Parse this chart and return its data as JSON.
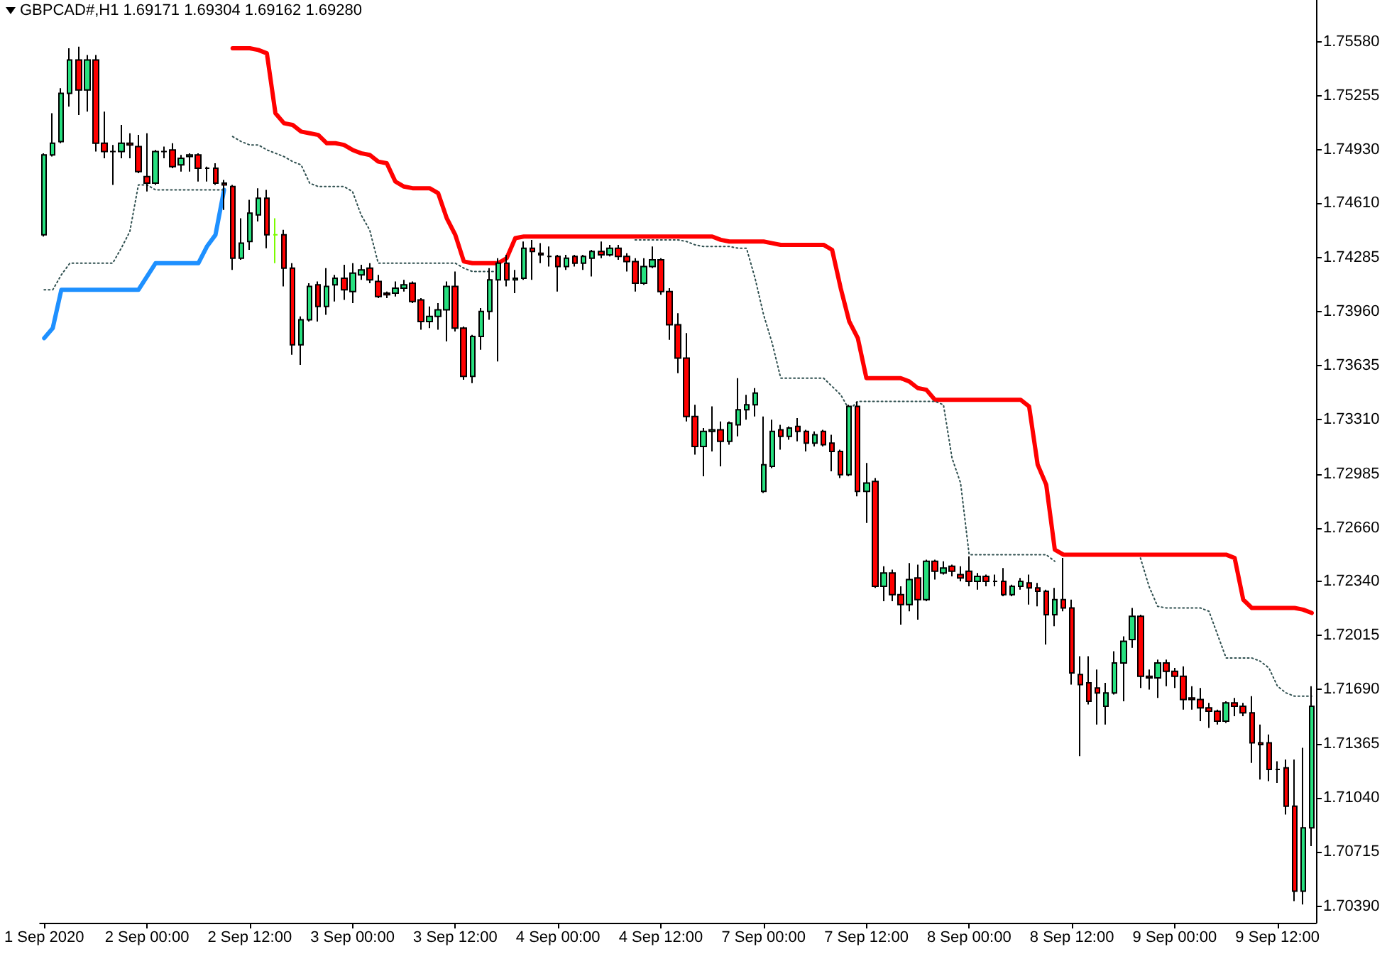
{
  "chart_data": {
    "type": "candlestick",
    "title": "GBPCAD#,H1 1.69171 1.69304 1.69162 1.69280",
    "categories": [
      "1 Sep 2020",
      null,
      null,
      null,
      null,
      null,
      null,
      null,
      null,
      null,
      null,
      null,
      "2 Sep 00:00",
      null,
      null,
      null,
      null,
      null,
      null,
      null,
      null,
      null,
      null,
      null,
      "2 Sep 12:00",
      null,
      null,
      null,
      null,
      null,
      null,
      null,
      null,
      null,
      null,
      null,
      "3 Sep 00:00",
      null,
      null,
      null,
      null,
      null,
      null,
      null,
      null,
      null,
      null,
      null,
      "3 Sep 12:00",
      null,
      null,
      null,
      null,
      null,
      null,
      null,
      null,
      null,
      null,
      null,
      "4 Sep 00:00",
      null,
      null,
      null,
      null,
      null,
      null,
      null,
      null,
      null,
      null,
      null,
      "4 Sep 12:00",
      null,
      null,
      null,
      null,
      null,
      null,
      null,
      null,
      null,
      null,
      null,
      "7 Sep 00:00",
      null,
      null,
      null,
      null,
      null,
      null,
      null,
      null,
      null,
      null,
      null,
      "7 Sep 12:00",
      null,
      null,
      null,
      null,
      null,
      null,
      null,
      null,
      null,
      null,
      null,
      "8 Sep 00:00",
      null,
      null,
      null,
      null,
      null,
      null,
      null,
      null,
      null,
      null,
      null,
      "8 Sep 12:00",
      null,
      null,
      null,
      null,
      null,
      null,
      null,
      null,
      null,
      null,
      null,
      "9 Sep 00:00",
      null,
      null,
      null,
      null,
      null,
      null,
      null,
      null,
      null,
      null,
      null,
      "9 Sep 12:00",
      null,
      null,
      null,
      null
    ],
    "ohlc": [
      [
        1.7442,
        1.7491,
        1.7441,
        1.749
      ],
      [
        1.749,
        1.7515,
        1.7489,
        1.7497
      ],
      [
        1.7498,
        1.753,
        1.7497,
        1.7527
      ],
      [
        1.7527,
        1.7554,
        1.7519,
        1.7547
      ],
      [
        1.7547,
        1.7555,
        1.7514,
        1.7529
      ],
      [
        1.7529,
        1.755,
        1.7516,
        1.7547
      ],
      [
        1.7547,
        1.755,
        1.7492,
        1.7497
      ],
      [
        1.7497,
        1.7516,
        1.7488,
        1.7492
      ],
      [
        1.7492,
        1.7496,
        1.7472,
        1.7492
      ],
      [
        1.7492,
        1.7508,
        1.7488,
        1.7497
      ],
      [
        1.7497,
        1.7503,
        1.7488,
        1.7496
      ],
      [
        1.7495,
        1.7502,
        1.7479,
        1.748
      ],
      [
        1.7477,
        1.7503,
        1.7468,
        1.7473
      ],
      [
        1.7473,
        1.7493,
        1.7472,
        1.7492
      ],
      [
        1.7492,
        1.7495,
        1.7488,
        1.7492
      ],
      [
        1.7493,
        1.7497,
        1.7482,
        1.7483
      ],
      [
        1.7484,
        1.749,
        1.748,
        1.7488
      ],
      [
        1.7489,
        1.7491,
        1.748,
        1.749
      ],
      [
        1.749,
        1.7491,
        1.7474,
        1.7482
      ],
      [
        1.7482,
        1.7483,
        1.7474,
        1.7482
      ],
      [
        1.7482,
        1.7485,
        1.7472,
        1.7473
      ],
      [
        1.7473,
        1.7475,
        1.7457,
        1.7472
      ],
      [
        1.7471,
        1.7472,
        1.7421,
        1.7428
      ],
      [
        1.7428,
        1.7452,
        1.7427,
        1.7437
      ],
      [
        1.7438,
        1.7463,
        1.7433,
        1.7455
      ],
      [
        1.7454,
        1.747,
        1.745,
        1.7464
      ],
      [
        1.7464,
        1.7469,
        1.7434,
        1.7442
      ],
      [
        1.7442,
        1.7452,
        1.7425,
        1.7442
      ],
      [
        1.7442,
        1.7445,
        1.7411,
        1.7422
      ],
      [
        1.7422,
        1.7425,
        1.737,
        1.7376
      ],
      [
        1.7376,
        1.7393,
        1.7364,
        1.7391
      ],
      [
        1.7391,
        1.7413,
        1.739,
        1.7411
      ],
      [
        1.7412,
        1.7414,
        1.739,
        1.7399
      ],
      [
        1.7399,
        1.7422,
        1.7394,
        1.7411
      ],
      [
        1.7412,
        1.7418,
        1.7402,
        1.7416
      ],
      [
        1.7416,
        1.7424,
        1.7403,
        1.7409
      ],
      [
        1.7408,
        1.7425,
        1.7401,
        1.7419
      ],
      [
        1.7418,
        1.7424,
        1.7415,
        1.7421
      ],
      [
        1.7422,
        1.7425,
        1.7413,
        1.7415
      ],
      [
        1.7414,
        1.7418,
        1.7404,
        1.7405
      ],
      [
        1.7407,
        1.7408,
        1.7404,
        1.7406
      ],
      [
        1.7407,
        1.7414,
        1.7405,
        1.741
      ],
      [
        1.741,
        1.7415,
        1.7408,
        1.7412
      ],
      [
        1.7413,
        1.7414,
        1.7401,
        1.7402
      ],
      [
        1.7403,
        1.7404,
        1.7385,
        1.739
      ],
      [
        1.739,
        1.7399,
        1.7386,
        1.7393
      ],
      [
        1.7393,
        1.7401,
        1.7385,
        1.7397
      ],
      [
        1.7397,
        1.7414,
        1.7378,
        1.7411
      ],
      [
        1.7411,
        1.742,
        1.7384,
        1.7386
      ],
      [
        1.7386,
        1.7387,
        1.7355,
        1.7357
      ],
      [
        1.7357,
        1.7382,
        1.7353,
        1.7381
      ],
      [
        1.7381,
        1.7398,
        1.7373,
        1.7396
      ],
      [
        1.7396,
        1.7422,
        1.7391,
        1.7415
      ],
      [
        1.7415,
        1.7428,
        1.7366,
        1.7425
      ],
      [
        1.7425,
        1.743,
        1.7411,
        1.7415
      ],
      [
        1.7415,
        1.7421,
        1.7407,
        1.7416
      ],
      [
        1.7416,
        1.7438,
        1.7415,
        1.7434
      ],
      [
        1.7434,
        1.7439,
        1.7415,
        1.7432
      ],
      [
        1.7431,
        1.7437,
        1.7425,
        1.743
      ],
      [
        1.7429,
        1.7435,
        1.7423,
        1.7429
      ],
      [
        1.7429,
        1.743,
        1.7408,
        1.7423
      ],
      [
        1.7423,
        1.743,
        1.7421,
        1.7428
      ],
      [
        1.7429,
        1.743,
        1.7423,
        1.7425
      ],
      [
        1.7425,
        1.743,
        1.7421,
        1.7429
      ],
      [
        1.7428,
        1.7433,
        1.7417,
        1.7432
      ],
      [
        1.7432,
        1.7438,
        1.7428,
        1.743
      ],
      [
        1.743,
        1.7436,
        1.7429,
        1.7434
      ],
      [
        1.7434,
        1.7436,
        1.7427,
        1.7429
      ],
      [
        1.7429,
        1.7431,
        1.742,
        1.7426
      ],
      [
        1.7426,
        1.7428,
        1.7408,
        1.7413
      ],
      [
        1.7413,
        1.7428,
        1.7412,
        1.7423
      ],
      [
        1.7423,
        1.7435,
        1.7422,
        1.7427
      ],
      [
        1.7427,
        1.7428,
        1.7406,
        1.7408
      ],
      [
        1.7408,
        1.741,
        1.7379,
        1.7388
      ],
      [
        1.7388,
        1.7395,
        1.7359,
        1.7368
      ],
      [
        1.7368,
        1.7383,
        1.733,
        1.7333
      ],
      [
        1.7333,
        1.734,
        1.731,
        1.7315
      ],
      [
        1.7315,
        1.7326,
        1.7297,
        1.7324
      ],
      [
        1.7324,
        1.7339,
        1.7312,
        1.7325
      ],
      [
        1.7325,
        1.733,
        1.7303,
        1.7318
      ],
      [
        1.7318,
        1.733,
        1.7316,
        1.7329
      ],
      [
        1.7328,
        1.7356,
        1.7321,
        1.7337
      ],
      [
        1.7337,
        1.7346,
        1.7331,
        1.734
      ],
      [
        1.734,
        1.735,
        1.7333,
        1.7347
      ],
      [
        1.7288,
        1.7333,
        1.7287,
        1.7304
      ],
      [
        1.7303,
        1.7331,
        1.7302,
        1.7324
      ],
      [
        1.7325,
        1.7328,
        1.7313,
        1.7321
      ],
      [
        1.7321,
        1.7327,
        1.7319,
        1.7326
      ],
      [
        1.7327,
        1.7332,
        1.7318,
        1.7324
      ],
      [
        1.7324,
        1.7325,
        1.7312,
        1.7317
      ],
      [
        1.7317,
        1.7324,
        1.7315,
        1.7322
      ],
      [
        1.7324,
        1.7325,
        1.7315,
        1.7316
      ],
      [
        1.7317,
        1.7322,
        1.73,
        1.7312
      ],
      [
        1.7312,
        1.7313,
        1.7296,
        1.7298
      ],
      [
        1.7298,
        1.734,
        1.7297,
        1.7339
      ],
      [
        1.7339,
        1.7342,
        1.7285,
        1.7288
      ],
      [
        1.7288,
        1.7305,
        1.7269,
        1.7293
      ],
      [
        1.7294,
        1.7296,
        1.723,
        1.7231
      ],
      [
        1.7231,
        1.7243,
        1.7222,
        1.7239
      ],
      [
        1.7239,
        1.7241,
        1.7222,
        1.7226
      ],
      [
        1.7226,
        1.7231,
        1.7208,
        1.722
      ],
      [
        1.722,
        1.7245,
        1.7216,
        1.7235
      ],
      [
        1.7236,
        1.7244,
        1.7211,
        1.7223
      ],
      [
        1.7223,
        1.7247,
        1.7222,
        1.7246
      ],
      [
        1.7246,
        1.7247,
        1.7235,
        1.724
      ],
      [
        1.7239,
        1.7246,
        1.7238,
        1.7242
      ],
      [
        1.7243,
        1.7244,
        1.7237,
        1.724
      ],
      [
        1.7238,
        1.7243,
        1.7234,
        1.7236
      ],
      [
        1.724,
        1.7249,
        1.7231,
        1.7234
      ],
      [
        1.7234,
        1.7239,
        1.7229,
        1.7237
      ],
      [
        1.7237,
        1.7238,
        1.7231,
        1.7234
      ],
      [
        1.7234,
        1.7238,
        1.7231,
        1.7234
      ],
      [
        1.7234,
        1.7242,
        1.7225,
        1.7226
      ],
      [
        1.7226,
        1.7232,
        1.7225,
        1.7231
      ],
      [
        1.7231,
        1.7236,
        1.7229,
        1.7234
      ],
      [
        1.7233,
        1.7238,
        1.722,
        1.723
      ],
      [
        1.723,
        1.7233,
        1.7219,
        1.7228
      ],
      [
        1.7228,
        1.7229,
        1.7196,
        1.7214
      ],
      [
        1.7214,
        1.723,
        1.7207,
        1.7223
      ],
      [
        1.7223,
        1.7248,
        1.7216,
        1.7218
      ],
      [
        1.7218,
        1.7223,
        1.7172,
        1.7179
      ],
      [
        1.7178,
        1.7189,
        1.7129,
        1.7172
      ],
      [
        1.7173,
        1.7189,
        1.716,
        1.7162
      ],
      [
        1.717,
        1.7181,
        1.7148,
        1.7167
      ],
      [
        1.7159,
        1.7173,
        1.7148,
        1.7167
      ],
      [
        1.7167,
        1.7192,
        1.7166,
        1.7185
      ],
      [
        1.7185,
        1.7201,
        1.7162,
        1.7198
      ],
      [
        1.7199,
        1.7218,
        1.7194,
        1.7213
      ],
      [
        1.7213,
        1.7214,
        1.717,
        1.7177
      ],
      [
        1.7177,
        1.7181,
        1.7169,
        1.7176
      ],
      [
        1.7176,
        1.7187,
        1.7164,
        1.7185
      ],
      [
        1.7185,
        1.7187,
        1.7171,
        1.718
      ],
      [
        1.718,
        1.7182,
        1.717,
        1.7177
      ],
      [
        1.7177,
        1.7183,
        1.7157,
        1.7163
      ],
      [
        1.7164,
        1.7171,
        1.7157,
        1.7163
      ],
      [
        1.7163,
        1.717,
        1.715,
        1.7158
      ],
      [
        1.7158,
        1.7161,
        1.7146,
        1.7156
      ],
      [
        1.7156,
        1.7157,
        1.7148,
        1.715
      ],
      [
        1.715,
        1.7162,
        1.7149,
        1.7161
      ],
      [
        1.7161,
        1.7164,
        1.7153,
        1.7159
      ],
      [
        1.7159,
        1.7161,
        1.7153,
        1.7155
      ],
      [
        1.7155,
        1.7165,
        1.7125,
        1.7137
      ],
      [
        1.7137,
        1.7148,
        1.7115,
        1.7136
      ],
      [
        1.7137,
        1.7142,
        1.7114,
        1.7121
      ],
      [
        1.7121,
        1.7126,
        1.7113,
        1.7121
      ],
      [
        1.7122,
        1.7127,
        1.7094,
        1.7099
      ],
      [
        1.7099,
        1.7127,
        1.7042,
        1.7048
      ],
      [
        1.7048,
        1.7134,
        1.704,
        1.7086
      ],
      [
        1.7086,
        1.7171,
        1.7075,
        1.7159
      ]
    ],
    "colors": [
      "#26e07f",
      "#26e07f",
      "#26e07f",
      "#26e07f",
      "#ff0000",
      "#26e07f",
      "#ff0000",
      "#ff0000",
      "#000000",
      "#26e07f",
      "#ff0000",
      "#ff0000",
      "#ff0000",
      "#26e07f",
      "#000000",
      "#ff0000",
      "#26e07f",
      "#26e07f",
      "#ff0000",
      "#000000",
      "#ff0000",
      "#ff0000",
      "#ff0000",
      "#26e07f",
      "#26e07f",
      "#26e07f",
      "#ff0000",
      "#7cfc00",
      "#ff0000",
      "#ff0000",
      "#26e07f",
      "#26e07f",
      "#ff0000",
      "#26e07f",
      "#26e07f",
      "#ff0000",
      "#26e07f",
      "#26e07f",
      "#ff0000",
      "#ff0000",
      "#ff0000",
      "#26e07f",
      "#26e07f",
      "#ff0000",
      "#ff0000",
      "#26e07f",
      "#26e07f",
      "#26e07f",
      "#ff0000",
      "#ff0000",
      "#26e07f",
      "#26e07f",
      "#26e07f",
      "#26e07f",
      "#ff0000",
      "#26e07f",
      "#26e07f",
      "#ff0000",
      "#ff0000",
      "#000000",
      "#ff0000",
      "#26e07f",
      "#ff0000",
      "#26e07f",
      "#26e07f",
      "#ff0000",
      "#26e07f",
      "#ff0000",
      "#ff0000",
      "#ff0000",
      "#26e07f",
      "#26e07f",
      "#ff0000",
      "#ff0000",
      "#ff0000",
      "#ff0000",
      "#ff0000",
      "#26e07f",
      "#26e07f",
      "#ff0000",
      "#26e07f",
      "#26e07f",
      "#26e07f",
      "#26e07f",
      "#26e07f",
      "#26e07f",
      "#ff0000",
      "#26e07f",
      "#ff0000",
      "#ff0000",
      "#26e07f",
      "#ff0000",
      "#ff0000",
      "#ff0000",
      "#26e07f",
      "#ff0000",
      "#26e07f",
      "#ff0000",
      "#26e07f",
      "#ff0000",
      "#ff0000",
      "#26e07f",
      "#ff0000",
      "#26e07f",
      "#ff0000",
      "#26e07f",
      "#ff0000",
      "#ff0000",
      "#ff0000",
      "#26e07f",
      "#ff0000",
      "#000000",
      "#ff0000",
      "#26e07f",
      "#26e07f",
      "#ff0000",
      "#ff0000",
      "#ff0000",
      "#26e07f",
      "#ff0000",
      "#ff0000",
      "#ff0000",
      "#ff0000",
      "#ff0000",
      "#26e07f",
      "#26e07f",
      "#26e07f",
      "#26e07f",
      "#ff0000",
      "#ff0000",
      "#26e07f",
      "#ff0000",
      "#ff0000",
      "#ff0000",
      "#ff0000",
      "#ff0000",
      "#ff0000",
      "#ff0000",
      "#26e07f",
      "#ff0000",
      "#ff0000",
      "#ff0000",
      "#ff0000",
      "#ff0000",
      "#000000",
      "#ff0000",
      "#ff0000",
      "#26e07f",
      "#26e07f"
    ],
    "series": [
      {
        "type": "line",
        "color": "#ff0000",
        "values": [
          null,
          null,
          null,
          null,
          null,
          null,
          null,
          null,
          null,
          null,
          null,
          null,
          null,
          null,
          null,
          null,
          null,
          null,
          null,
          null,
          null,
          null,
          1.7554,
          1.7554,
          1.7554,
          1.7553,
          1.7551,
          1.7515,
          1.7509,
          1.7508,
          1.7504,
          1.7503,
          1.7502,
          1.7497,
          1.7497,
          1.7496,
          1.7493,
          1.7491,
          1.749,
          1.7486,
          1.7485,
          1.7474,
          1.7471,
          1.747,
          1.747,
          1.747,
          1.7467,
          1.7452,
          1.7442,
          1.7426,
          1.7425,
          1.7425,
          1.7425,
          1.7425,
          1.7428,
          1.744,
          1.7441,
          1.7441,
          1.7441,
          1.7441,
          1.7441,
          1.7441,
          1.7441,
          1.7441,
          1.7441,
          1.7441,
          1.7441,
          1.7441,
          1.7441,
          1.7441,
          1.7441,
          1.7441,
          1.7441,
          1.7441,
          1.7441,
          1.7441,
          1.7441,
          1.7441,
          1.7441,
          1.7439,
          1.7438,
          1.7438,
          1.7438,
          1.7438,
          1.7438,
          1.7437,
          1.7436,
          1.7436,
          1.7436,
          1.7436,
          1.7436,
          1.7436,
          1.7433,
          1.741,
          1.739,
          1.738,
          1.7356,
          1.7356,
          1.7356,
          1.7356,
          1.7356,
          1.7354,
          1.735,
          1.7349,
          1.7343,
          1.7343,
          1.7343,
          1.7343,
          1.7343,
          1.7343,
          1.7343,
          1.7343,
          1.7343,
          1.7343,
          1.7343,
          1.7339,
          1.7304,
          1.7292,
          1.7253,
          1.725,
          1.725,
          1.725,
          1.725,
          1.725,
          1.725,
          1.725,
          1.725,
          1.725,
          1.725,
          1.725,
          1.725,
          1.725,
          1.725,
          1.725,
          1.725,
          1.725,
          1.725,
          1.725,
          1.725,
          1.7248,
          1.7223,
          1.7218,
          1.7218,
          1.7218,
          1.7218,
          1.7218,
          1.7218,
          1.7217,
          1.7215
        ]
      },
      {
        "type": "line",
        "color": "#1e90ff",
        "values": [
          1.738,
          1.7386,
          1.7409,
          1.7409,
          1.7409,
          1.7409,
          1.7409,
          1.7409,
          1.7409,
          1.7409,
          1.7409,
          1.7409,
          1.7417,
          1.7425,
          1.7425,
          1.7425,
          1.7425,
          1.7425,
          1.7425,
          1.7435,
          1.7442,
          1.7469,
          null,
          null,
          null,
          null,
          null,
          null,
          null,
          null,
          null,
          null,
          null,
          null,
          null,
          null,
          null,
          null,
          null,
          null,
          null,
          null,
          null,
          null,
          null,
          null,
          null,
          null,
          null,
          null,
          null,
          null,
          null,
          null,
          null,
          null,
          null,
          null,
          null,
          null,
          null,
          null,
          null,
          null,
          null,
          null,
          null,
          null,
          null,
          null,
          null,
          null,
          null,
          null,
          null,
          null,
          null,
          null,
          null,
          null,
          null,
          null,
          null,
          null,
          null,
          null,
          null,
          null,
          null,
          null,
          null,
          null,
          null,
          null,
          null,
          null,
          null,
          null,
          null,
          null,
          null,
          null,
          null,
          null,
          null,
          null,
          null,
          null,
          null,
          null,
          null,
          null,
          null,
          null,
          null,
          null,
          null,
          null,
          null,
          null,
          null,
          null,
          null,
          null,
          null,
          null,
          null,
          null,
          null,
          null,
          null,
          null,
          null,
          null,
          null,
          null,
          null,
          null,
          null,
          null,
          null,
          null,
          null,
          null,
          null,
          null,
          null,
          null,
          null
        ]
      },
      {
        "type": "line",
        "color": "#2f4f4f",
        "line_style": "dotted",
        "values": [
          1.7409,
          1.7409,
          1.7418,
          1.7425,
          1.7425,
          1.7425,
          1.7425,
          1.7425,
          1.7425,
          1.7434,
          1.7444,
          1.7472,
          1.7472,
          1.7469,
          1.7469,
          1.7469,
          1.7469,
          1.7469,
          1.7469,
          1.7469,
          1.7469,
          1.7469,
          null,
          null,
          null,
          null,
          null,
          null,
          null,
          null,
          null,
          null,
          null,
          null,
          null,
          null,
          null,
          null,
          null,
          null,
          null,
          null,
          null,
          null,
          null,
          null,
          null,
          null,
          null,
          null,
          null,
          null,
          null,
          null,
          null,
          null,
          null,
          null,
          null,
          null,
          null,
          null,
          null,
          null,
          null,
          null,
          null,
          null,
          null,
          null,
          null,
          null,
          null,
          null,
          null,
          null,
          null,
          null,
          null,
          null,
          null,
          null,
          null,
          null,
          null,
          null,
          null,
          null,
          null,
          null,
          null,
          null,
          null,
          null,
          null,
          null,
          null,
          null,
          null,
          null,
          null,
          null,
          null,
          null,
          null,
          null,
          null,
          null,
          null,
          null,
          null,
          null,
          null,
          null,
          null,
          null,
          null,
          null,
          null,
          null,
          null,
          null,
          null,
          null,
          null,
          null,
          null,
          null,
          null,
          null,
          null,
          null,
          null,
          null,
          null,
          null,
          null,
          null,
          null,
          null,
          null,
          null,
          null,
          null,
          null,
          null,
          null,
          null,
          null
        ]
      },
      {
        "type": "line",
        "color": "#2f4f4f",
        "line_style": "dotted",
        "values": [
          null,
          null,
          null,
          null,
          null,
          null,
          null,
          null,
          null,
          null,
          null,
          null,
          null,
          null,
          null,
          null,
          null,
          null,
          null,
          null,
          null,
          null,
          1.7501,
          1.7498,
          1.7496,
          1.7496,
          1.7493,
          1.7491,
          1.7489,
          1.7486,
          1.7484,
          1.7473,
          1.7471,
          1.7471,
          1.7471,
          1.7471,
          1.7468,
          1.7454,
          1.7445,
          1.7425,
          1.7425,
          1.7425,
          1.7425,
          1.7425,
          1.7425,
          1.7425,
          1.7425,
          1.7425,
          1.7425,
          1.7422,
          1.742,
          1.742,
          1.742,
          1.742,
          null,
          null,
          null,
          null,
          null,
          null,
          null,
          null,
          null,
          null,
          null,
          null,
          null,
          null,
          null,
          1.7439,
          1.7439,
          1.7439,
          1.7439,
          1.7439,
          1.7439,
          1.7438,
          1.7436,
          1.7435,
          1.7435,
          1.7435,
          1.7435,
          1.7434,
          1.7434,
          1.7416,
          1.7394,
          1.7377,
          1.7356,
          1.7356,
          1.7356,
          1.7356,
          1.7356,
          1.7356,
          1.7351,
          1.7346,
          1.7337,
          1.7342,
          1.7342,
          1.7342,
          1.7342,
          1.7342,
          1.7342,
          1.7342,
          1.7342,
          1.7342,
          1.7342,
          1.734,
          1.7308,
          1.7293,
          1.725,
          1.725,
          1.725,
          1.725,
          1.725,
          1.725,
          1.725,
          1.725,
          1.725,
          1.725,
          1.7246,
          null,
          null,
          null,
          null,
          null,
          null,
          null,
          null,
          null,
          1.7248,
          1.7231,
          1.7219,
          1.7218,
          1.7218,
          1.7218,
          1.7218,
          1.7218,
          1.7216,
          1.7202,
          1.7188,
          1.7188,
          1.7188,
          1.7188,
          1.7186,
          1.7182,
          1.7171,
          1.7167,
          1.7165,
          1.7165,
          1.7165
        ]
      }
    ],
    "ylim": [
      1.7029,
      1.7583
    ],
    "yticks": [
      {
        "value": 1.7558,
        "label": "1.75580"
      },
      1.75255,
      {
        "value": 1.7493,
        "label": "1.74930"
      },
      {
        "value": 1.7461,
        "label": "1.74610"
      },
      1.74285,
      {
        "value": 1.7396,
        "label": "1.73960"
      },
      1.73635,
      {
        "value": 1.7331,
        "label": "1.73310"
      },
      1.72985,
      {
        "value": 1.7266,
        "label": "1.72660"
      },
      {
        "value": 1.7234,
        "label": "1.72340"
      },
      1.72015,
      {
        "value": 1.7169,
        "label": "1.71690"
      },
      1.71365,
      {
        "value": 1.7104,
        "label": "1.71040"
      },
      1.70715,
      {
        "value": 1.7039,
        "label": "1.70390"
      }
    ]
  }
}
